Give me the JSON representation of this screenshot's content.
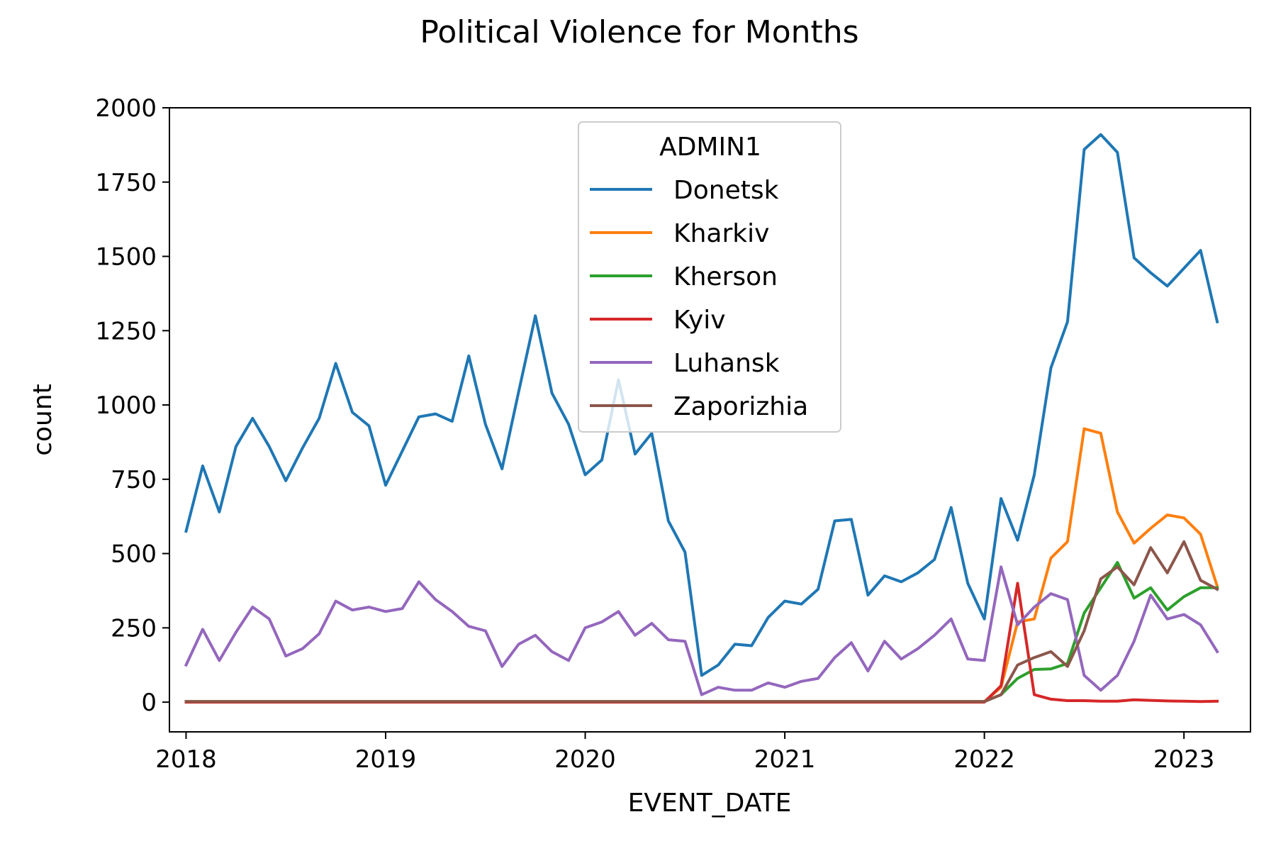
{
  "chart_data": {
    "type": "line",
    "title": "Political Violence for Months",
    "xlabel": "EVENT_DATE",
    "ylabel": "count",
    "xlim": [
      "2017-12",
      "2023-05"
    ],
    "ylim": [
      -100,
      2000
    ],
    "x_ticks": [
      "2018",
      "2019",
      "2020",
      "2021",
      "2022",
      "2023"
    ],
    "y_ticks": [
      0,
      250,
      500,
      750,
      1000,
      1250,
      1500,
      1750,
      2000
    ],
    "grid": false,
    "legend": {
      "title": "ADMIN1",
      "position": "upper-center"
    },
    "x": [
      "2018-01",
      "2018-02",
      "2018-03",
      "2018-04",
      "2018-05",
      "2018-06",
      "2018-07",
      "2018-08",
      "2018-09",
      "2018-10",
      "2018-11",
      "2018-12",
      "2019-01",
      "2019-02",
      "2019-03",
      "2019-04",
      "2019-05",
      "2019-06",
      "2019-07",
      "2019-08",
      "2019-09",
      "2019-10",
      "2019-11",
      "2019-12",
      "2020-01",
      "2020-02",
      "2020-03",
      "2020-04",
      "2020-05",
      "2020-06",
      "2020-07",
      "2020-08",
      "2020-09",
      "2020-10",
      "2020-11",
      "2020-12",
      "2021-01",
      "2021-02",
      "2021-03",
      "2021-04",
      "2021-05",
      "2021-06",
      "2021-07",
      "2021-08",
      "2021-09",
      "2021-10",
      "2021-11",
      "2021-12",
      "2022-01",
      "2022-02",
      "2022-03",
      "2022-04",
      "2022-05",
      "2022-06",
      "2022-07",
      "2022-08",
      "2022-09",
      "2022-10",
      "2022-11",
      "2022-12",
      "2023-01",
      "2023-02",
      "2023-03"
    ],
    "series": [
      {
        "name": "Donetsk",
        "color": "#1f77b4",
        "values": [
          575,
          795,
          640,
          860,
          955,
          860,
          745,
          855,
          955,
          1140,
          975,
          930,
          730,
          845,
          960,
          970,
          945,
          1165,
          935,
          785,
          1045,
          1300,
          1040,
          935,
          765,
          815,
          1085,
          835,
          905,
          610,
          505,
          90,
          125,
          195,
          190,
          285,
          340,
          330,
          380,
          610,
          615,
          360,
          425,
          405,
          435,
          480,
          655,
          400,
          280,
          685,
          545,
          765,
          1125,
          1280,
          1860,
          1910,
          1850,
          1495,
          1445,
          1400,
          1460,
          1520,
          1280
        ]
      },
      {
        "name": "Kharkiv",
        "color": "#ff7f0e",
        "values": [
          2,
          2,
          2,
          2,
          2,
          2,
          2,
          2,
          2,
          2,
          2,
          2,
          2,
          2,
          2,
          2,
          2,
          2,
          2,
          2,
          2,
          2,
          2,
          2,
          2,
          2,
          2,
          2,
          2,
          2,
          2,
          2,
          2,
          2,
          2,
          2,
          2,
          2,
          2,
          2,
          2,
          2,
          2,
          2,
          2,
          2,
          2,
          2,
          2,
          50,
          270,
          280,
          485,
          540,
          920,
          905,
          640,
          535,
          585,
          630,
          620,
          565,
          390
        ]
      },
      {
        "name": "Kherson",
        "color": "#2ca02c",
        "values": [
          2,
          2,
          2,
          2,
          2,
          2,
          2,
          2,
          2,
          2,
          2,
          2,
          2,
          2,
          2,
          2,
          2,
          2,
          2,
          2,
          2,
          2,
          2,
          2,
          2,
          2,
          2,
          2,
          2,
          2,
          2,
          2,
          2,
          2,
          2,
          2,
          2,
          2,
          2,
          2,
          2,
          2,
          2,
          2,
          2,
          2,
          2,
          2,
          2,
          25,
          80,
          110,
          112,
          130,
          300,
          385,
          470,
          350,
          385,
          310,
          355,
          385,
          385
        ]
      },
      {
        "name": "Kyiv",
        "color": "#d62728",
        "values": [
          0,
          0,
          0,
          0,
          0,
          0,
          0,
          0,
          0,
          0,
          0,
          0,
          0,
          0,
          0,
          0,
          0,
          0,
          0,
          0,
          0,
          0,
          0,
          0,
          0,
          0,
          0,
          0,
          0,
          0,
          0,
          0,
          0,
          0,
          0,
          0,
          0,
          0,
          0,
          0,
          0,
          0,
          0,
          0,
          0,
          0,
          0,
          0,
          0,
          55,
          400,
          25,
          10,
          5,
          5,
          3,
          3,
          8,
          6,
          4,
          3,
          2,
          3
        ]
      },
      {
        "name": "Luhansk",
        "color": "#9467bd",
        "values": [
          125,
          245,
          140,
          235,
          320,
          280,
          155,
          180,
          230,
          340,
          310,
          320,
          305,
          315,
          405,
          345,
          305,
          255,
          240,
          120,
          195,
          225,
          170,
          140,
          250,
          270,
          305,
          225,
          265,
          210,
          205,
          25,
          50,
          40,
          40,
          65,
          50,
          70,
          80,
          150,
          200,
          105,
          205,
          145,
          180,
          225,
          280,
          145,
          140,
          455,
          260,
          320,
          365,
          345,
          90,
          40,
          90,
          205,
          360,
          280,
          295,
          260,
          170
        ]
      },
      {
        "name": "Zaporizhia",
        "color": "#8c564b",
        "values": [
          2,
          2,
          2,
          2,
          2,
          2,
          2,
          2,
          2,
          2,
          2,
          2,
          2,
          2,
          2,
          2,
          2,
          2,
          2,
          2,
          2,
          2,
          2,
          2,
          2,
          2,
          2,
          2,
          2,
          2,
          2,
          2,
          2,
          2,
          2,
          2,
          2,
          2,
          2,
          2,
          2,
          2,
          2,
          2,
          2,
          2,
          2,
          2,
          2,
          25,
          125,
          150,
          170,
          120,
          240,
          415,
          455,
          395,
          520,
          435,
          540,
          410,
          380
        ]
      }
    ]
  }
}
